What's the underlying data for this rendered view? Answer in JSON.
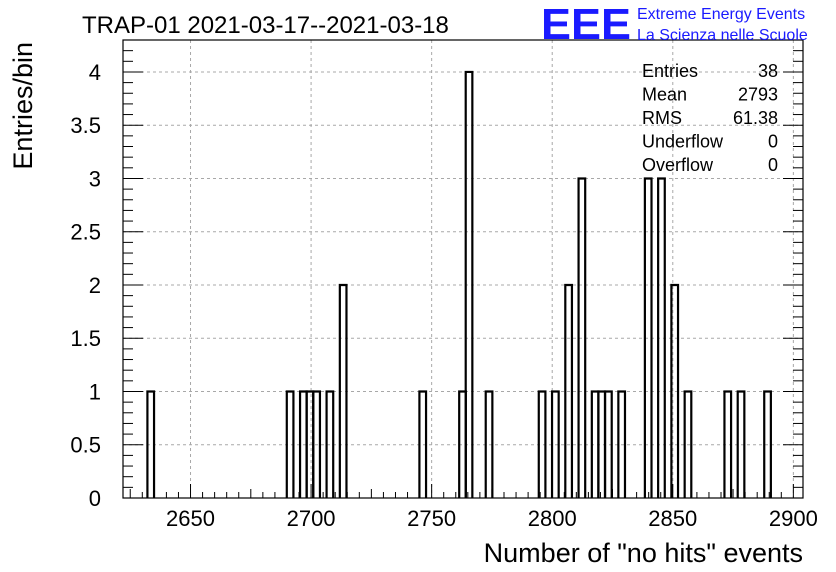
{
  "chart_data": {
    "type": "bar",
    "subtype": "histogram",
    "title": "TRAP-01 2021-03-17--2021-03-18",
    "xlabel": "Number of \"no hits\" events",
    "ylabel": "Entries/bin",
    "xlim": [
      2622,
      2904
    ],
    "ylim": [
      0,
      4.3
    ],
    "bin_width": 2.75,
    "grid": true,
    "xticks": [
      2650,
      2700,
      2750,
      2800,
      2850,
      2900
    ],
    "yticks": [
      0,
      0.5,
      1,
      1.5,
      2,
      2.5,
      3,
      3.5,
      4
    ],
    "bins": [
      {
        "x": 2633.5,
        "count": 1
      },
      {
        "x": 2691.3,
        "count": 1
      },
      {
        "x": 2696.8,
        "count": 1
      },
      {
        "x": 2699.5,
        "count": 1
      },
      {
        "x": 2702.3,
        "count": 1
      },
      {
        "x": 2707.8,
        "count": 1
      },
      {
        "x": 2713.3,
        "count": 2
      },
      {
        "x": 2746.3,
        "count": 1
      },
      {
        "x": 2762.8,
        "count": 1
      },
      {
        "x": 2765.5,
        "count": 4
      },
      {
        "x": 2773.8,
        "count": 1
      },
      {
        "x": 2795.8,
        "count": 1
      },
      {
        "x": 2801.3,
        "count": 1
      },
      {
        "x": 2806.8,
        "count": 2
      },
      {
        "x": 2812.3,
        "count": 3
      },
      {
        "x": 2817.8,
        "count": 1
      },
      {
        "x": 2820.5,
        "count": 1
      },
      {
        "x": 2823.3,
        "count": 1
      },
      {
        "x": 2828.8,
        "count": 1
      },
      {
        "x": 2839.8,
        "count": 3
      },
      {
        "x": 2845.3,
        "count": 3
      },
      {
        "x": 2850.8,
        "count": 2
      },
      {
        "x": 2856.3,
        "count": 1
      },
      {
        "x": 2872.8,
        "count": 1
      },
      {
        "x": 2878.3,
        "count": 1
      },
      {
        "x": 2889.3,
        "count": 1
      }
    ],
    "stats": [
      {
        "label": "Entries",
        "value": "38"
      },
      {
        "label": "Mean",
        "value": "2793"
      },
      {
        "label": "RMS",
        "value": "61.38"
      },
      {
        "label": "Underflow",
        "value": "0"
      },
      {
        "label": "Overflow",
        "value": "0"
      }
    ]
  },
  "logo": {
    "mark": "EEE",
    "line1": "Extreme Energy Events",
    "line2": "La Scienza nelle Scuole",
    "color": "#1a1aff"
  }
}
